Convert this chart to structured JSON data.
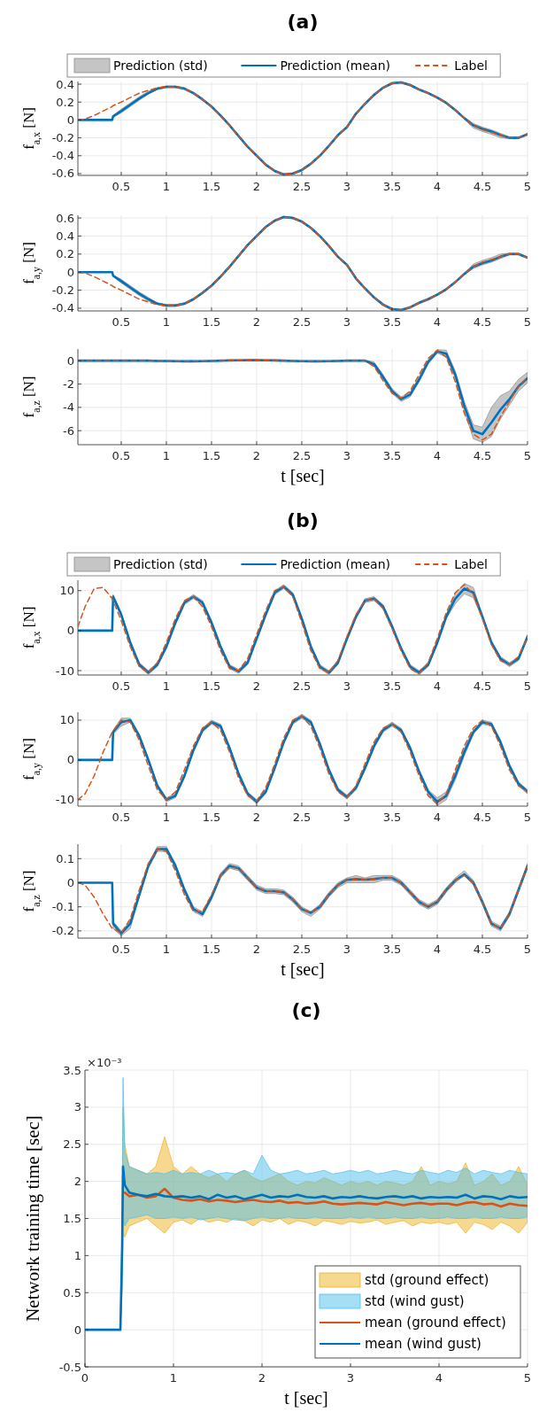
{
  "chart_data": [
    {
      "type": "line",
      "title": "(a)",
      "ylabel": "f$_{a,x}$ [N]",
      "annotations": [
        "Prediction (std)"
      ],
      "x": [
        0.02,
        0.1,
        0.2,
        0.3,
        0.4,
        0.41,
        0.5,
        0.6,
        0.7,
        0.8,
        0.9,
        1.0,
        1.1,
        1.2,
        1.3,
        1.4,
        1.5,
        1.6,
        1.7,
        1.8,
        1.9,
        2.0,
        2.1,
        2.2,
        2.3,
        2.4,
        2.5,
        2.6,
        2.7,
        2.8,
        2.9,
        3.0,
        3.1,
        3.2,
        3.3,
        3.4,
        3.5,
        3.6,
        3.7,
        3.8,
        3.9,
        4.0,
        4.1,
        4.2,
        4.3,
        4.4,
        4.5,
        4.6,
        4.7,
        4.8,
        4.9,
        5.0
      ],
      "xlim": [
        0.02,
        5
      ],
      "xticks": [
        0.5,
        1,
        1.5,
        2,
        2.5,
        3,
        3.5,
        4,
        4.5,
        5
      ],
      "ylim": [
        -0.62,
        0.43
      ],
      "yticks": [
        -0.6,
        -0.4,
        -0.2,
        0,
        0.2,
        0.4
      ],
      "grid": true,
      "legend": "top",
      "series": [
        {
          "name": "Prediction (mean)",
          "color": "#0072bd",
          "values": [
            0,
            0,
            0,
            0,
            0,
            0.04,
            0.1,
            0.17,
            0.24,
            0.3,
            0.35,
            0.37,
            0.37,
            0.35,
            0.3,
            0.23,
            0.15,
            0.05,
            -0.06,
            -0.18,
            -0.3,
            -0.4,
            -0.5,
            -0.57,
            -0.61,
            -0.6,
            -0.56,
            -0.49,
            -0.4,
            -0.29,
            -0.17,
            -0.08,
            0.07,
            0.18,
            0.28,
            0.36,
            0.41,
            0.42,
            0.39,
            0.34,
            0.3,
            0.25,
            0.19,
            0.11,
            0.02,
            -0.06,
            -0.1,
            -0.13,
            -0.17,
            -0.2,
            -0.2,
            -0.16
          ],
          "lower": [
            0,
            0,
            0,
            0,
            0,
            0.03,
            0.08,
            0.15,
            0.22,
            0.29,
            0.34,
            0.36,
            0.36,
            0.34,
            0.29,
            0.22,
            0.14,
            0.04,
            -0.07,
            -0.19,
            -0.31,
            -0.41,
            -0.51,
            -0.58,
            -0.62,
            -0.61,
            -0.57,
            -0.5,
            -0.41,
            -0.3,
            -0.18,
            -0.09,
            0.06,
            0.17,
            0.27,
            0.35,
            0.4,
            0.41,
            0.38,
            0.33,
            0.29,
            0.24,
            0.18,
            0.1,
            0.01,
            -0.09,
            -0.13,
            -0.16,
            -0.2,
            -0.21,
            -0.21,
            -0.17
          ],
          "upper": [
            0,
            0,
            0,
            0,
            0,
            0.05,
            0.12,
            0.19,
            0.26,
            0.32,
            0.36,
            0.38,
            0.38,
            0.36,
            0.31,
            0.24,
            0.16,
            0.06,
            -0.05,
            -0.17,
            -0.29,
            -0.39,
            -0.49,
            -0.56,
            -0.6,
            -0.59,
            -0.55,
            -0.48,
            -0.39,
            -0.28,
            -0.16,
            -0.07,
            0.08,
            0.19,
            0.29,
            0.37,
            0.42,
            0.43,
            0.4,
            0.35,
            0.31,
            0.26,
            0.2,
            0.12,
            0.03,
            -0.04,
            -0.08,
            -0.11,
            -0.15,
            -0.19,
            -0.19,
            -0.15
          ]
        },
        {
          "name": "Label",
          "line_style": "dashed",
          "color": "#d95319",
          "values": [
            0,
            0.01,
            0.05,
            0.1,
            0.15,
            0.16,
            0.2,
            0.25,
            0.3,
            0.33,
            0.36,
            0.37,
            0.37,
            0.35,
            0.3,
            0.23,
            0.15,
            0.05,
            -0.06,
            -0.18,
            -0.3,
            -0.4,
            -0.5,
            -0.57,
            -0.61,
            -0.6,
            -0.56,
            -0.49,
            -0.4,
            -0.29,
            -0.17,
            -0.08,
            0.07,
            0.18,
            0.28,
            0.36,
            0.41,
            0.42,
            0.39,
            0.34,
            0.3,
            0.25,
            0.19,
            0.11,
            0.02,
            -0.06,
            -0.11,
            -0.14,
            -0.17,
            -0.2,
            -0.2,
            -0.16
          ]
        }
      ]
    },
    {
      "type": "line",
      "ylabel": "f$_{a,y}$ [N]",
      "x": [
        0.02,
        0.1,
        0.2,
        0.3,
        0.4,
        0.41,
        0.5,
        0.6,
        0.7,
        0.8,
        0.9,
        1.0,
        1.1,
        1.2,
        1.3,
        1.4,
        1.5,
        1.6,
        1.7,
        1.8,
        1.9,
        2.0,
        2.1,
        2.2,
        2.3,
        2.4,
        2.5,
        2.6,
        2.7,
        2.8,
        2.9,
        3.0,
        3.1,
        3.2,
        3.3,
        3.4,
        3.5,
        3.6,
        3.7,
        3.8,
        3.9,
        4.0,
        4.1,
        4.2,
        4.3,
        4.4,
        4.5,
        4.6,
        4.7,
        4.8,
        4.9,
        5.0
      ],
      "xlim": [
        0.02,
        5
      ],
      "xticks": [
        0.5,
        1,
        1.5,
        2,
        2.5,
        3,
        3.5,
        4,
        4.5,
        5
      ],
      "ylim": [
        -0.43,
        0.63
      ],
      "yticks": [
        -0.4,
        -0.2,
        0,
        0.2,
        0.4,
        0.6
      ],
      "grid": true,
      "series": [
        {
          "color": "#0072bd",
          "values": [
            0,
            0,
            0,
            0,
            0,
            -0.04,
            -0.1,
            -0.17,
            -0.24,
            -0.3,
            -0.35,
            -0.37,
            -0.37,
            -0.35,
            -0.3,
            -0.23,
            -0.15,
            -0.05,
            0.06,
            0.18,
            0.3,
            0.4,
            0.5,
            0.57,
            0.61,
            0.6,
            0.56,
            0.49,
            0.4,
            0.29,
            0.17,
            0.08,
            -0.07,
            -0.18,
            -0.28,
            -0.36,
            -0.41,
            -0.42,
            -0.39,
            -0.34,
            -0.3,
            -0.25,
            -0.19,
            -0.11,
            -0.02,
            0.06,
            0.1,
            0.13,
            0.17,
            0.2,
            0.2,
            0.16
          ],
          "lower": [
            0,
            0,
            0,
            0,
            0,
            -0.05,
            -0.12,
            -0.19,
            -0.26,
            -0.32,
            -0.36,
            -0.38,
            -0.38,
            -0.36,
            -0.31,
            -0.24,
            -0.16,
            -0.06,
            0.05,
            0.17,
            0.29,
            0.39,
            0.49,
            0.56,
            0.6,
            0.59,
            0.55,
            0.48,
            0.39,
            0.28,
            0.16,
            0.07,
            -0.08,
            -0.19,
            -0.29,
            -0.37,
            -0.42,
            -0.43,
            -0.4,
            -0.35,
            -0.31,
            -0.26,
            -0.2,
            -0.12,
            -0.03,
            0.04,
            0.08,
            0.11,
            0.15,
            0.19,
            0.19,
            0.15
          ],
          "upper": [
            0,
            0,
            0,
            0,
            0,
            -0.03,
            -0.08,
            -0.15,
            -0.22,
            -0.28,
            -0.34,
            -0.36,
            -0.36,
            -0.34,
            -0.29,
            -0.22,
            -0.14,
            -0.04,
            0.07,
            0.19,
            0.31,
            0.41,
            0.51,
            0.58,
            0.62,
            0.61,
            0.57,
            0.5,
            0.41,
            0.3,
            0.18,
            0.09,
            -0.06,
            -0.17,
            -0.27,
            -0.35,
            -0.4,
            -0.41,
            -0.38,
            -0.33,
            -0.29,
            -0.24,
            -0.18,
            -0.1,
            -0.01,
            0.09,
            0.13,
            0.16,
            0.2,
            0.21,
            0.21,
            0.17
          ]
        },
        {
          "line_style": "dashed",
          "color": "#d95319",
          "values": [
            0,
            -0.01,
            -0.05,
            -0.1,
            -0.15,
            -0.16,
            -0.2,
            -0.25,
            -0.3,
            -0.33,
            -0.36,
            -0.37,
            -0.37,
            -0.35,
            -0.3,
            -0.23,
            -0.15,
            -0.05,
            0.06,
            0.18,
            0.3,
            0.4,
            0.5,
            0.57,
            0.61,
            0.6,
            0.56,
            0.49,
            0.4,
            0.29,
            0.17,
            0.08,
            -0.07,
            -0.18,
            -0.28,
            -0.36,
            -0.41,
            -0.42,
            -0.39,
            -0.34,
            -0.3,
            -0.25,
            -0.19,
            -0.11,
            -0.02,
            0.06,
            0.11,
            0.14,
            0.17,
            0.2,
            0.2,
            0.16
          ]
        }
      ]
    },
    {
      "type": "line",
      "ylabel": "f$_{a,z}$ [N]",
      "xlabel": "t [sec]",
      "x": [
        0.02,
        0.1,
        0.2,
        0.3,
        0.4,
        0.41,
        0.5,
        0.6,
        0.7,
        0.8,
        0.9,
        1.0,
        1.1,
        1.2,
        1.3,
        1.4,
        1.5,
        1.6,
        1.7,
        1.8,
        1.9,
        2.0,
        2.1,
        2.2,
        2.3,
        2.4,
        2.5,
        2.6,
        2.7,
        2.8,
        2.9,
        3.0,
        3.1,
        3.2,
        3.3,
        3.4,
        3.5,
        3.6,
        3.7,
        3.8,
        3.9,
        4.0,
        4.1,
        4.2,
        4.3,
        4.4,
        4.5,
        4.6,
        4.7,
        4.8,
        4.9,
        5.0
      ],
      "xlim": [
        0.02,
        5
      ],
      "xticks": [
        0.5,
        1,
        1.5,
        2,
        2.5,
        3,
        3.5,
        4,
        4.5,
        5
      ],
      "ylim": [
        -7.2,
        1
      ],
      "yticks": [
        -6,
        -4,
        -2,
        0
      ],
      "grid": true,
      "series": [
        {
          "color": "#0072bd",
          "values": [
            0,
            0,
            0,
            0,
            0,
            0,
            0,
            0,
            0,
            0,
            -0.02,
            -0.03,
            -0.04,
            -0.05,
            -0.05,
            -0.04,
            -0.02,
            0,
            0.02,
            0.03,
            0.04,
            0.04,
            0.03,
            0.02,
            0,
            -0.02,
            -0.04,
            -0.05,
            -0.05,
            -0.04,
            -0.02,
            0,
            0,
            0,
            -0.3,
            -1.4,
            -2.6,
            -3.3,
            -2.9,
            -1.6,
            -0.1,
            0.8,
            0.6,
            -1.2,
            -3.9,
            -6,
            -6.3,
            -5.3,
            -4.2,
            -3.3,
            -2.2,
            -1.5
          ],
          "lower": [
            -0.05,
            -0.05,
            -0.05,
            -0.05,
            -0.05,
            -0.05,
            -0.05,
            -0.05,
            -0.05,
            -0.05,
            -0.07,
            -0.08,
            -0.09,
            -0.1,
            -0.1,
            -0.09,
            -0.07,
            -0.05,
            -0.03,
            -0.02,
            -0.01,
            -0.01,
            -0.02,
            -0.03,
            -0.05,
            -0.07,
            -0.09,
            -0.1,
            -0.1,
            -0.09,
            -0.07,
            -0.05,
            -0.05,
            -0.05,
            -0.5,
            -1.6,
            -2.8,
            -3.5,
            -3.1,
            -1.8,
            -0.3,
            0.65,
            0.3,
            -1.5,
            -4.3,
            -6.7,
            -7,
            -6.5,
            -5,
            -3.8,
            -2.6,
            -1.9
          ],
          "upper": [
            0.05,
            0.05,
            0.05,
            0.05,
            0.05,
            0.05,
            0.05,
            0.05,
            0.05,
            0.05,
            0.03,
            0.02,
            0.01,
            0,
            0,
            0.01,
            0.03,
            0.05,
            0.07,
            0.08,
            0.09,
            0.09,
            0.08,
            0.07,
            0.05,
            0.03,
            0.01,
            0,
            0,
            0.01,
            0.03,
            0.05,
            0.05,
            0.05,
            -0.1,
            -1.2,
            -2.4,
            -3.1,
            -2.7,
            -1.4,
            0.1,
            0.95,
            0.9,
            -0.9,
            -3.5,
            -5.5,
            -5.7,
            -4,
            -3,
            -2.6,
            -1.6,
            -1
          ]
        },
        {
          "line_style": "dashed",
          "color": "#d95319",
          "values": [
            0,
            0,
            0,
            0,
            0,
            0,
            0,
            0,
            0,
            0,
            -0.02,
            -0.03,
            -0.04,
            -0.05,
            -0.05,
            -0.04,
            -0.02,
            0,
            0.02,
            0.03,
            0.04,
            0.04,
            0.03,
            0.02,
            0,
            -0.02,
            -0.04,
            -0.05,
            -0.05,
            -0.04,
            -0.02,
            0,
            0,
            0,
            -0.5,
            -1.7,
            -2.8,
            -3.2,
            -2.6,
            -1.2,
            0.2,
            0.9,
            0.3,
            -1.8,
            -4.5,
            -6.3,
            -6.8,
            -6.3,
            -4.8,
            -3.5,
            -2.2,
            -1.4
          ]
        }
      ]
    },
    {
      "type": "line",
      "title": "(b)",
      "ylabel": "f$_{a,x}$ [N]",
      "annotations": [
        "Prediction (std)"
      ],
      "x": [
        0.02,
        0.1,
        0.2,
        0.3,
        0.4,
        0.41,
        0.5,
        0.6,
        0.7,
        0.8,
        0.9,
        1.0,
        1.1,
        1.2,
        1.3,
        1.4,
        1.5,
        1.6,
        1.7,
        1.8,
        1.9,
        2.0,
        2.1,
        2.2,
        2.3,
        2.4,
        2.5,
        2.6,
        2.7,
        2.8,
        2.9,
        3.0,
        3.1,
        3.2,
        3.3,
        3.4,
        3.5,
        3.6,
        3.7,
        3.8,
        3.9,
        4.0,
        4.1,
        4.2,
        4.3,
        4.4,
        4.5,
        4.6,
        4.7,
        4.8,
        4.9,
        5.0
      ],
      "xlim": [
        0.02,
        5
      ],
      "xticks": [
        0.5,
        1,
        1.5,
        2,
        2.5,
        3,
        3.5,
        4,
        4.5,
        5
      ],
      "ylim": [
        -11.1,
        12.6
      ],
      "yticks": [
        -10,
        0,
        10
      ],
      "grid": true,
      "legend": "top",
      "series": [
        {
          "name": "Prediction (mean)",
          "color": "#0072bd",
          "values": [
            0,
            0,
            0,
            0,
            0,
            8.5,
            4,
            -3,
            -8.5,
            -10.5,
            -8.5,
            -4,
            2,
            7,
            8.5,
            7,
            2,
            -4,
            -9,
            -10.2,
            -8,
            -2,
            4,
            9.5,
            11,
            9,
            3,
            -4,
            -9,
            -10.5,
            -8,
            -2,
            3.5,
            7.5,
            8,
            6,
            1,
            -4.5,
            -9,
            -10.5,
            -8.5,
            -3,
            3.5,
            8,
            10.5,
            9.5,
            3.5,
            -3,
            -7,
            -8.5,
            -7,
            -1.5
          ],
          "lower": [
            0,
            0,
            0,
            0,
            0,
            8,
            3.5,
            -3.5,
            -9,
            -11,
            -9,
            -4.5,
            1.5,
            6.5,
            8,
            6.5,
            1.5,
            -4.5,
            -9.5,
            -10.7,
            -8.5,
            -2.5,
            3.5,
            9,
            10.5,
            8.5,
            2.5,
            -4.5,
            -9.5,
            -11,
            -8.5,
            -2.5,
            3,
            7,
            7.5,
            5.5,
            0.5,
            -5,
            -9.5,
            -11,
            -9,
            -3.5,
            3,
            6.7,
            9.2,
            8.2,
            3,
            -3.5,
            -7.5,
            -9,
            -7.5,
            -2
          ],
          "upper": [
            0,
            0,
            0,
            0,
            0,
            9,
            4.5,
            -2.5,
            -8,
            -10,
            -8,
            -3.5,
            2.5,
            7.5,
            9,
            7.5,
            2.5,
            -3.5,
            -8.5,
            -9.7,
            -7.5,
            -1.5,
            4.5,
            10,
            11.5,
            9.5,
            3.5,
            -3.5,
            -8.5,
            -10,
            -7.5,
            -1.5,
            4,
            8,
            8.5,
            6.5,
            1.5,
            -4,
            -8.5,
            -10,
            -8,
            -2.5,
            4,
            9.3,
            11.8,
            10.8,
            4,
            -2.5,
            -6.5,
            -8,
            -6.5,
            -1
          ]
        },
        {
          "name": "Label",
          "line_style": "dashed",
          "color": "#d95319",
          "values": [
            1,
            6,
            10.5,
            10.8,
            8,
            7.5,
            2.5,
            -4,
            -9,
            -10.5,
            -8,
            -3,
            3,
            7.5,
            8.5,
            6,
            1,
            -5,
            -9.5,
            -10,
            -7,
            -1,
            5,
            10,
            11,
            8.5,
            2,
            -5,
            -9.5,
            -10.5,
            -7.5,
            -1.5,
            4,
            7.5,
            8,
            5.5,
            0.5,
            -5,
            -9.5,
            -10.8,
            -8,
            -2,
            4.5,
            9.5,
            11.5,
            9,
            3,
            -3.5,
            -7.5,
            -8.5,
            -6.5,
            -1.5
          ]
        }
      ]
    },
    {
      "type": "line",
      "ylabel": "f$_{a,y}$ [N]",
      "x": [
        0.02,
        0.1,
        0.2,
        0.3,
        0.4,
        0.41,
        0.5,
        0.6,
        0.7,
        0.8,
        0.9,
        1.0,
        1.1,
        1.2,
        1.3,
        1.4,
        1.5,
        1.6,
        1.7,
        1.8,
        1.9,
        2.0,
        2.1,
        2.2,
        2.3,
        2.4,
        2.5,
        2.6,
        2.7,
        2.8,
        2.9,
        3.0,
        3.1,
        3.2,
        3.3,
        3.4,
        3.5,
        3.6,
        3.7,
        3.8,
        3.9,
        4.0,
        4.1,
        4.2,
        4.3,
        4.4,
        4.5,
        4.6,
        4.7,
        4.8,
        4.9,
        5.0
      ],
      "xlim": [
        0.02,
        5
      ],
      "xticks": [
        0.5,
        1,
        1.5,
        2,
        2.5,
        3,
        3.5,
        4,
        4.5,
        5
      ],
      "ylim": [
        -11.6,
        12
      ],
      "yticks": [
        -10,
        0,
        10
      ],
      "grid": true,
      "series": [
        {
          "color": "#0072bd",
          "values": [
            0,
            0,
            0,
            0,
            0,
            7,
            9.5,
            10,
            6,
            0,
            -6.5,
            -10,
            -9,
            -4,
            2.5,
            7.5,
            9.5,
            8.5,
            3,
            -3.5,
            -8.5,
            -10.5,
            -8,
            -2,
            4.5,
            9.5,
            11,
            9.5,
            4,
            -2.5,
            -7.5,
            -9.3,
            -7,
            -2,
            3.5,
            7.5,
            9,
            7.5,
            3,
            -3,
            -8,
            -10.5,
            -9,
            -4,
            2,
            7,
            9.5,
            9,
            4.5,
            -1.5,
            -6,
            -8
          ],
          "lower": [
            0,
            0,
            0,
            0,
            0,
            6.5,
            8.5,
            9.5,
            5.5,
            -0.5,
            -7,
            -10.5,
            -9.5,
            -4.5,
            2,
            7,
            9,
            8,
            2.5,
            -4,
            -9,
            -11,
            -8.5,
            -2.5,
            4,
            9,
            10.5,
            9,
            3.5,
            -3,
            -8,
            -9.8,
            -7.5,
            -2.5,
            3,
            7,
            8.5,
            7,
            2.5,
            -3.5,
            -8.5,
            -11.5,
            -10,
            -5,
            1,
            6.5,
            9,
            8.5,
            4,
            -2,
            -6.5,
            -8.5
          ],
          "upper": [
            0,
            0,
            0,
            0,
            0,
            7.5,
            10.5,
            10.5,
            6.5,
            0.5,
            -6,
            -9.5,
            -8.5,
            -3.5,
            3,
            8,
            10,
            9,
            3.5,
            -3,
            -8,
            -10,
            -7.5,
            -1.5,
            5,
            10,
            11.5,
            10,
            4.5,
            -2,
            -7,
            -8.8,
            -6.5,
            -1.5,
            4,
            8,
            9.5,
            8,
            3.5,
            -2.5,
            -7.5,
            -9.5,
            -8,
            -3,
            3,
            7.5,
            10,
            9.5,
            5,
            -1,
            -5.5,
            -7.5
          ]
        },
        {
          "line_style": "dashed",
          "color": "#d95319",
          "values": [
            -10,
            -8.5,
            -4,
            2,
            7,
            7.3,
            10,
            9.5,
            5,
            -1.5,
            -7.5,
            -10,
            -8,
            -2.5,
            3.5,
            8,
            9.5,
            7.5,
            2,
            -4.5,
            -9,
            -10.3,
            -7,
            -1,
            5.5,
            10,
            11,
            8.5,
            3,
            -3.5,
            -8,
            -9.5,
            -6.5,
            -1,
            4.5,
            8,
            9,
            7,
            2,
            -4,
            -9,
            -11,
            -8.5,
            -2.5,
            3.5,
            8,
            10,
            8.5,
            3.5,
            -2.5,
            -6.5,
            -8
          ]
        }
      ]
    },
    {
      "type": "line",
      "ylabel": "f$_{a,z}$ [N]",
      "xlabel": "t [sec]",
      "x": [
        0.02,
        0.1,
        0.2,
        0.3,
        0.4,
        0.41,
        0.5,
        0.6,
        0.7,
        0.8,
        0.9,
        1.0,
        1.1,
        1.2,
        1.3,
        1.4,
        1.5,
        1.6,
        1.7,
        1.8,
        1.9,
        2.0,
        2.1,
        2.2,
        2.3,
        2.4,
        2.5,
        2.6,
        2.7,
        2.8,
        2.9,
        3.0,
        3.1,
        3.2,
        3.3,
        3.4,
        3.5,
        3.6,
        3.7,
        3.8,
        3.9,
        4.0,
        4.1,
        4.2,
        4.3,
        4.4,
        4.5,
        4.6,
        4.7,
        4.8,
        4.9,
        5.0
      ],
      "xlim": [
        0.02,
        5
      ],
      "xticks": [
        0.5,
        1,
        1.5,
        2,
        2.5,
        3,
        3.5,
        4,
        4.5,
        5
      ],
      "ylim": [
        -0.23,
        0.16
      ],
      "yticks": [
        -0.2,
        -0.1,
        0,
        0.1
      ],
      "grid": true,
      "series": [
        {
          "color": "#0072bd",
          "values": [
            0,
            0,
            0,
            0,
            0,
            -0.17,
            -0.21,
            -0.17,
            -0.05,
            0.07,
            0.14,
            0.14,
            0.07,
            -0.03,
            -0.11,
            -0.13,
            -0.06,
            0.03,
            0.07,
            0.06,
            0.02,
            -0.02,
            -0.035,
            -0.035,
            -0.04,
            -0.07,
            -0.11,
            -0.125,
            -0.1,
            -0.05,
            -0.01,
            0.012,
            0.015,
            0.013,
            0.015,
            0.02,
            0.02,
            0,
            -0.04,
            -0.08,
            -0.1,
            -0.08,
            -0.03,
            0.01,
            0.035,
            0,
            -0.08,
            -0.17,
            -0.19,
            -0.13,
            -0.03,
            0.07
          ],
          "lower": [
            0,
            0,
            0,
            0,
            0,
            -0.19,
            -0.22,
            -0.19,
            -0.06,
            0.06,
            0.13,
            0.13,
            0.06,
            -0.04,
            -0.12,
            -0.14,
            -0.07,
            0.02,
            0.06,
            0.05,
            0.01,
            -0.03,
            -0.045,
            -0.045,
            -0.05,
            -0.08,
            -0.12,
            -0.14,
            -0.11,
            -0.06,
            -0.02,
            0,
            0,
            0,
            0,
            0.01,
            0.01,
            -0.01,
            -0.05,
            -0.09,
            -0.11,
            -0.09,
            -0.04,
            0,
            0.03,
            -0.01,
            -0.09,
            -0.18,
            -0.2,
            -0.14,
            -0.04,
            0.06
          ],
          "upper": [
            0,
            0,
            0,
            0,
            0,
            -0.16,
            -0.2,
            -0.16,
            -0.04,
            0.08,
            0.15,
            0.15,
            0.08,
            -0.02,
            -0.1,
            -0.12,
            -0.05,
            0.04,
            0.08,
            0.07,
            0.03,
            -0.01,
            -0.025,
            -0.025,
            -0.03,
            -0.06,
            -0.1,
            -0.12,
            -0.09,
            -0.04,
            0,
            0.02,
            0.03,
            0.02,
            0.03,
            0.03,
            0.03,
            0.01,
            -0.03,
            -0.07,
            -0.09,
            -0.07,
            -0.02,
            0.02,
            0.05,
            0.01,
            -0.07,
            -0.16,
            -0.18,
            -0.12,
            -0.02,
            0.08
          ]
        },
        {
          "line_style": "dashed",
          "color": "#d95319",
          "values": [
            0,
            -0.01,
            -0.06,
            -0.13,
            -0.19,
            -0.19,
            -0.21,
            -0.15,
            -0.03,
            0.08,
            0.14,
            0.13,
            0.05,
            -0.05,
            -0.12,
            -0.12,
            -0.05,
            0.03,
            0.065,
            0.06,
            0.02,
            -0.02,
            -0.035,
            -0.035,
            -0.04,
            -0.07,
            -0.11,
            -0.125,
            -0.1,
            -0.05,
            -0.01,
            0.012,
            0.015,
            0.013,
            0.015,
            0.02,
            0.02,
            0,
            -0.04,
            -0.08,
            -0.1,
            -0.08,
            -0.03,
            0.01,
            0.03,
            0,
            -0.08,
            -0.17,
            -0.19,
            -0.13,
            -0.03,
            0.07
          ]
        }
      ]
    },
    {
      "type": "line",
      "title": "(c)",
      "ylabel": "Network training time [sec]",
      "xlabel": "t [sec]",
      "annotations": [
        "×10⁻³",
        "std (ground effect)",
        "std (wind gust)"
      ],
      "x": [
        0,
        0.4,
        0.42,
        0.43,
        0.45,
        0.5,
        0.6,
        0.7,
        0.8,
        0.9,
        1.0,
        1.1,
        1.2,
        1.3,
        1.4,
        1.5,
        1.6,
        1.7,
        1.8,
        1.9,
        2.0,
        2.1,
        2.2,
        2.3,
        2.4,
        2.5,
        2.6,
        2.7,
        2.8,
        2.9,
        3.0,
        3.1,
        3.2,
        3.3,
        3.4,
        3.5,
        3.6,
        3.7,
        3.8,
        3.9,
        4.0,
        4.1,
        4.2,
        4.3,
        4.4,
        4.5,
        4.6,
        4.7,
        4.8,
        4.9,
        5.0
      ],
      "xlim": [
        0,
        5
      ],
      "xticks": [
        0,
        1,
        2,
        3,
        4,
        5
      ],
      "ylim": [
        -0.5,
        3.5
      ],
      "yticks": [
        -0.5,
        0,
        0.5,
        1,
        1.5,
        2,
        2.5,
        3,
        3.5
      ],
      "grid": true,
      "legend": "bottom right",
      "series": [
        {
          "name": "mean (ground effect)",
          "color": "#d95319",
          "values": [
            null,
            null,
            null,
            null,
            1.85,
            1.8,
            1.82,
            1.78,
            1.8,
            1.9,
            1.78,
            1.75,
            1.74,
            1.76,
            1.73,
            1.75,
            1.74,
            1.72,
            1.74,
            1.75,
            1.73,
            1.72,
            1.74,
            1.71,
            1.72,
            1.7,
            1.71,
            1.73,
            1.7,
            1.69,
            1.7,
            1.71,
            1.7,
            1.69,
            1.72,
            1.7,
            1.68,
            1.7,
            1.71,
            1.69,
            1.7,
            1.7,
            1.68,
            1.71,
            1.72,
            1.69,
            1.7,
            1.66,
            1.7,
            1.68,
            1.67
          ],
          "lower": [
            0,
            0,
            0.5,
            1.3,
            1.25,
            1.4,
            1.45,
            1.5,
            1.4,
            1.3,
            1.45,
            1.48,
            1.42,
            1.5,
            1.45,
            1.48,
            1.45,
            1.5,
            1.47,
            1.4,
            1.48,
            1.45,
            1.5,
            1.42,
            1.47,
            1.45,
            1.4,
            1.47,
            1.45,
            1.42,
            1.46,
            1.44,
            1.45,
            1.48,
            1.42,
            1.45,
            1.47,
            1.4,
            1.45,
            1.43,
            1.45,
            1.42,
            1.45,
            1.3,
            1.45,
            1.42,
            1.35,
            1.45,
            1.4,
            1.3,
            1.45
          ],
          "upper": [
            0,
            0,
            1.5,
            3.0,
            2.5,
            2.2,
            2.15,
            2.1,
            2.2,
            2.6,
            2.2,
            2.1,
            2.2,
            2.1,
            2.05,
            2.1,
            2.0,
            2.1,
            2.15,
            2.05,
            2.0,
            2.05,
            2.1,
            2.0,
            1.95,
            2.0,
            1.98,
            2.05,
            2.0,
            1.95,
            2.0,
            1.97,
            2.0,
            1.95,
            2.0,
            1.98,
            1.95,
            2.0,
            2.2,
            1.95,
            2.0,
            1.97,
            2.0,
            2.25,
            1.95,
            2.0,
            2.1,
            1.95,
            2.0,
            2.2,
            1.95
          ]
        },
        {
          "name": "mean (wind gust)",
          "color": "#0072bd",
          "values": [
            0,
            0,
            1.1,
            2.2,
            1.95,
            1.85,
            1.82,
            1.8,
            1.83,
            1.8,
            1.79,
            1.8,
            1.78,
            1.8,
            1.76,
            1.82,
            1.78,
            1.8,
            1.76,
            1.79,
            1.82,
            1.78,
            1.8,
            1.79,
            1.82,
            1.79,
            1.78,
            1.8,
            1.77,
            1.79,
            1.78,
            1.8,
            1.78,
            1.77,
            1.79,
            1.8,
            1.78,
            1.8,
            1.77,
            1.79,
            1.78,
            1.79,
            1.78,
            1.82,
            1.77,
            1.8,
            1.79,
            1.76,
            1.8,
            1.78,
            1.79
          ],
          "lower": [
            0,
            0,
            0.6,
            1.5,
            1.4,
            1.5,
            1.52,
            1.55,
            1.5,
            1.5,
            1.52,
            1.5,
            1.52,
            1.48,
            1.5,
            1.52,
            1.5,
            1.48,
            1.47,
            1.5,
            1.52,
            1.5,
            1.5,
            1.52,
            1.5,
            1.5,
            1.52,
            1.5,
            1.5,
            1.5,
            1.52,
            1.5,
            1.52,
            1.5,
            1.5,
            1.52,
            1.5,
            1.5,
            1.52,
            1.5,
            1.5,
            1.52,
            1.5,
            1.5,
            1.52,
            1.5,
            1.5,
            1.52,
            1.5,
            1.5,
            1.52
          ],
          "upper": [
            0,
            0,
            1.6,
            3.4,
            2.4,
            2.2,
            2.15,
            2.1,
            2.12,
            2.1,
            2.15,
            2.1,
            2.12,
            2.1,
            2.15,
            2.1,
            2.12,
            2.1,
            2.15,
            2.1,
            2.35,
            2.15,
            2.1,
            2.12,
            2.15,
            2.1,
            2.12,
            2.15,
            2.1,
            2.12,
            2.15,
            2.12,
            2.15,
            2.1,
            2.12,
            2.15,
            2.12,
            2.1,
            2.15,
            2.12,
            2.1,
            2.15,
            2.12,
            2.18,
            2.1,
            2.15,
            2.12,
            2.1,
            2.15,
            2.12,
            2.1
          ]
        }
      ]
    }
  ]
}
